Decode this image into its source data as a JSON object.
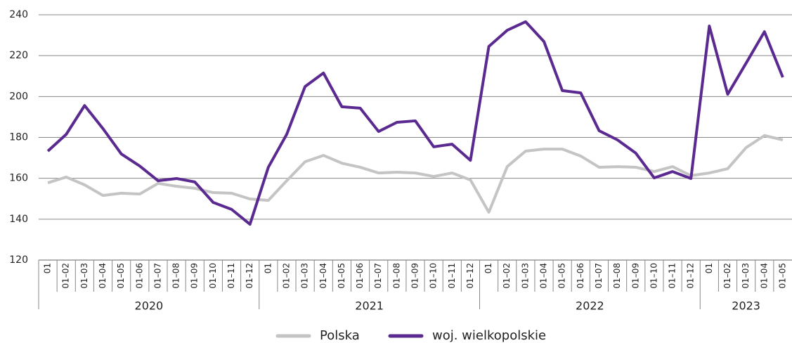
{
  "chart_data": {
    "type": "line",
    "groups": [
      {
        "label": "2020",
        "categories": [
          "01",
          "01–02",
          "01–03",
          "01–04",
          "01–05",
          "01–06",
          "01–07",
          "01–08",
          "01–09",
          "01–10",
          "01–11",
          "01–12"
        ]
      },
      {
        "label": "2021",
        "categories": [
          "01",
          "01–02",
          "01–03",
          "01–04",
          "01–05",
          "01–06",
          "01–07",
          "01–08",
          "01–09",
          "01–10",
          "01–11",
          "01–12"
        ]
      },
      {
        "label": "2022",
        "categories": [
          "01",
          "01–02",
          "01–03",
          "01–04",
          "01–05",
          "01–06",
          "01–07",
          "01–08",
          "01–09",
          "01–10",
          "01–11",
          "01–12"
        ]
      },
      {
        "label": "2023",
        "categories": [
          "01",
          "01–02",
          "01–03",
          "01–04",
          "01–05"
        ]
      }
    ],
    "series": [
      {
        "name": "Polska",
        "color": "#c4c4c4",
        "values": [
          157.8,
          160.6,
          156.8,
          151.6,
          152.7,
          152.3,
          157.5,
          156.1,
          155.1,
          153,
          152.7,
          149.9,
          149.2,
          158.8,
          168.1,
          171.2,
          167.4,
          165.4,
          162.6,
          163,
          162.6,
          160.9,
          162.6,
          159.2,
          143.4,
          165.7,
          173.3,
          174.3,
          174.3,
          170.9,
          165.4,
          165.7,
          165.4,
          163.3,
          165.7,
          161.3,
          162.6,
          164.7,
          175,
          180.9,
          178.8
        ]
      },
      {
        "name": "woj. wielkopolskie",
        "color": "#5b2a91",
        "values": [
          173.3,
          181.5,
          195.6,
          184.3,
          171.9,
          166,
          158.8,
          159.9,
          158.2,
          148.2,
          144.8,
          137.5,
          165.4,
          181.5,
          204.9,
          211.5,
          195,
          194.3,
          182.9,
          187.4,
          188.1,
          175.4,
          176.7,
          168.8,
          224.5,
          232.4,
          236.6,
          226.9,
          202.9,
          201.8,
          183.3,
          178.8,
          172.3,
          160.2,
          163.3,
          159.9,
          234.5,
          201.1,
          216.3,
          231.7,
          209.4
        ]
      }
    ],
    "ylim": [
      120,
      240
    ],
    "yticks": [
      120,
      140,
      160,
      180,
      200,
      220,
      240
    ],
    "grid": true,
    "legend": "bottom"
  }
}
